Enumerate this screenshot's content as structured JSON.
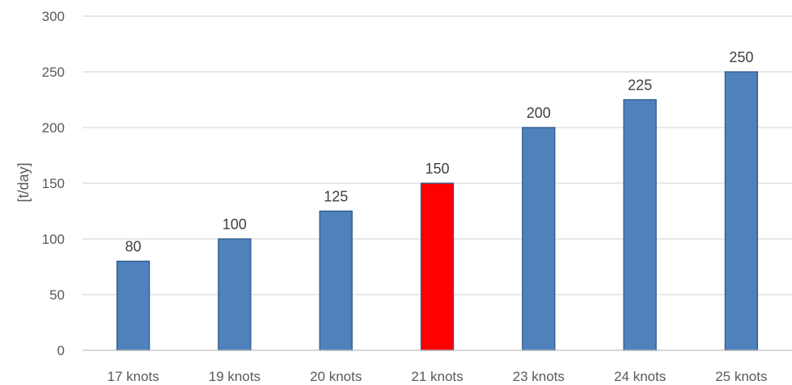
{
  "chart_data": {
    "type": "bar",
    "categories": [
      "17 knots",
      "19 knots",
      "20 knots",
      "21 knots",
      "23 knots",
      "24 knots",
      "25 knots"
    ],
    "values": [
      80,
      100,
      125,
      150,
      200,
      225,
      250
    ],
    "ylabel": "[t/day]",
    "ylim": [
      0,
      300
    ],
    "yticks": [
      0,
      50,
      100,
      150,
      200,
      250,
      300
    ],
    "grid": true,
    "bar_color": "#4f81bd",
    "highlight_color": "#ff0000",
    "highlight_category": "21 knots",
    "bar_stroke": "#2e5a8a"
  }
}
